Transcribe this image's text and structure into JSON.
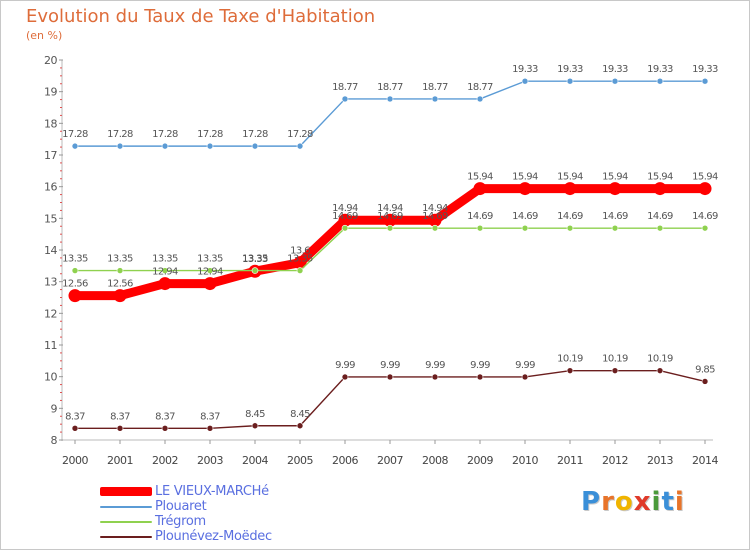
{
  "header": {
    "title": "Evolution du Taux de Taxe d'Habitation",
    "subtitle": "(en %)"
  },
  "chart_data": {
    "type": "line",
    "x": [
      "2000",
      "2001",
      "2002",
      "2003",
      "2004",
      "2005",
      "2006",
      "2007",
      "2008",
      "2009",
      "2010",
      "2011",
      "2012",
      "2013",
      "2014"
    ],
    "ylim": [
      8,
      20
    ],
    "yticks": [
      8,
      9,
      10,
      11,
      12,
      13,
      14,
      15,
      16,
      17,
      18,
      19,
      20
    ],
    "grid": false,
    "legend_position": "bottom-left",
    "series": [
      {
        "name": "LE VIEUX-MARCHé",
        "color": "#ff0000",
        "values": [
          12.56,
          12.56,
          12.94,
          12.94,
          13.33,
          13.6,
          14.94,
          14.94,
          14.94,
          15.94,
          15.94,
          15.94,
          15.94,
          15.94,
          15.94
        ],
        "labels": [
          "12.56",
          "12.56",
          "12.94",
          "12.94",
          "13.33",
          "13.6",
          "14.94",
          "14.94",
          "14.94",
          "15.94",
          "15.94",
          "15.94",
          "15.94",
          "15.94",
          "15.94"
        ]
      },
      {
        "name": "Plouaret",
        "color": "#5b9bd5",
        "values": [
          17.28,
          17.28,
          17.28,
          17.28,
          17.28,
          17.28,
          18.77,
          18.77,
          18.77,
          18.77,
          19.33,
          19.33,
          19.33,
          19.33,
          19.33
        ],
        "labels": [
          "17.28",
          "17.28",
          "17.28",
          "17.28",
          "17.28",
          "17.28",
          "18.77",
          "18.77",
          "18.77",
          "18.77",
          "19.33",
          "19.33",
          "19.33",
          "19.33",
          "19.33"
        ]
      },
      {
        "name": "Trégrom",
        "color": "#8fd14f",
        "values": [
          13.35,
          13.35,
          13.35,
          13.35,
          13.35,
          13.35,
          14.69,
          14.69,
          14.69,
          14.69,
          14.69,
          14.69,
          14.69,
          14.69,
          14.69
        ],
        "labels": [
          "13.35",
          "13.35",
          "13.35",
          "13.35",
          "13.35",
          "13.35",
          "14.69",
          "14.69",
          "14.69",
          "14.69",
          "14.69",
          "14.69",
          "14.69",
          "14.69",
          "14.69"
        ]
      },
      {
        "name": "Plounévez-Moëdec",
        "color": "#6b1e1e",
        "values": [
          8.37,
          8.37,
          8.37,
          8.37,
          8.45,
          8.45,
          9.99,
          9.99,
          9.99,
          9.99,
          9.99,
          10.19,
          10.19,
          10.19,
          9.85
        ],
        "labels": [
          "8.37",
          "8.37",
          "8.37",
          "8.37",
          "8.45",
          "8.45",
          "9.99",
          "9.99",
          "9.99",
          "9.99",
          "9.99",
          "10.19",
          "10.19",
          "10.19",
          "9.85"
        ]
      }
    ]
  },
  "logo": {
    "text": "Proxiti",
    "letter_colors": [
      "#3a8fd8",
      "#e8742a",
      "#f0b400",
      "#e03a2a",
      "#4a9a3a",
      "#3a8fd8",
      "#e8742a"
    ]
  }
}
